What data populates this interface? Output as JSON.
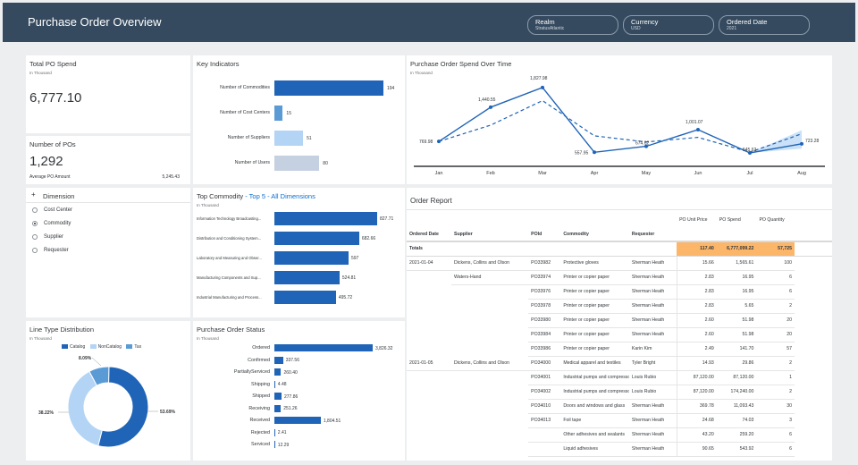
{
  "header": {
    "title": "Purchase Order Overview",
    "filters": [
      {
        "label": "Realm",
        "value": "StratusAtlantic"
      },
      {
        "label": "Currency",
        "value": "USD"
      },
      {
        "label": "Ordered Date",
        "value": "2021"
      }
    ]
  },
  "total_po": {
    "title": "Total PO Spend",
    "unit": "In Thousand",
    "value": "6,777.10"
  },
  "num_pos": {
    "title": "Number of POs",
    "value": "1,292",
    "avg_label": "Average PO Amount",
    "avg_value": "5,245.43"
  },
  "dimension": {
    "title": "Dimension",
    "options": [
      "Cost Center",
      "Commodity",
      "Supplier",
      "Requester"
    ],
    "selected": "Commodity"
  },
  "key_indicators": {
    "title": "Key Indicators"
  },
  "top_commodity": {
    "title": "Top Commodity",
    "link": "- Top 5 - All Dimensions",
    "unit": "In Thousand"
  },
  "spend_over_time": {
    "title": "Purchase Order Spend Over Time",
    "unit": "In Thousand"
  },
  "line_type": {
    "title": "Line Type Distribution",
    "unit": "In Thousand"
  },
  "po_status": {
    "title": "Purchase Order Status",
    "unit": "In Thousand"
  },
  "order_report": {
    "title": "Order Report",
    "header_top": [
      "PO Unit Price",
      "PO Spend",
      "PO Quantity"
    ],
    "columns": [
      "Ordered Date",
      "Supplier",
      "POId",
      "Commodity",
      "Requester"
    ],
    "totals": {
      "label": "Totals",
      "unit_price": "117.40",
      "spend": "6,777,099.22",
      "qty": "57,725"
    },
    "rows": [
      [
        "2021-01-04",
        "Dickens, Collins and Olson",
        "PO33982",
        "Protective gloves",
        "Sherman Heath",
        "15.66",
        "1,565.61",
        "100"
      ],
      [
        "",
        "Waters-Hand",
        "PO33974",
        "Printer or copier paper",
        "Sherman Heath",
        "2.83",
        "16.95",
        "6"
      ],
      [
        "",
        "",
        "PO33976",
        "Printer or copier paper",
        "Sherman Heath",
        "2.83",
        "16.95",
        "6"
      ],
      [
        "",
        "",
        "PO33978",
        "Printer or copier paper",
        "Sherman Heath",
        "2.83",
        "5.65",
        "2"
      ],
      [
        "",
        "",
        "PO33980",
        "Printer or copier paper",
        "Sherman Heath",
        "2.60",
        "51.98",
        "20"
      ],
      [
        "",
        "",
        "PO33984",
        "Printer or copier paper",
        "Sherman Heath",
        "2.60",
        "51.98",
        "20"
      ],
      [
        "",
        "",
        "PO33986",
        "Printer or copier paper",
        "Karin Kim",
        "2.49",
        "141.70",
        "57"
      ],
      [
        "2021-01-05",
        "Dickens, Collins and Olson",
        "PO34000",
        "Medical apparel and textiles",
        "Tyler Bright",
        "14.93",
        "29.86",
        "2"
      ],
      [
        "",
        "",
        "PO34001",
        "Industrial pumps and compressors",
        "Louis Rubio",
        "87,120.00",
        "87,120.00",
        "1"
      ],
      [
        "",
        "",
        "PO34002",
        "Industrial pumps and compressors",
        "Louis Rubio",
        "87,120.00",
        "174,240.00",
        "2"
      ],
      [
        "",
        "",
        "PO34010",
        "Doors and windows and glass",
        "Sherman Heath",
        "369.78",
        "11,093.43",
        "30"
      ],
      [
        "",
        "",
        "PO34013",
        "Foil tape",
        "Sherman Heath",
        "24.68",
        "74.03",
        "3"
      ],
      [
        "",
        "",
        "",
        "Other adhesives and sealants",
        "Sherman Heath",
        "43.20",
        "259.20",
        "6"
      ],
      [
        "",
        "",
        "",
        "Liquid adhesives",
        "Sherman Heath",
        "90.65",
        "543.92",
        "6"
      ]
    ]
  },
  "colors": {
    "header": "#354a5f",
    "primary": "#1f64b7",
    "light": "#5b9bd5",
    "lighter": "#b3d4f5",
    "gray": "#c5d0e0",
    "highlight": "#fbb66a"
  },
  "chart_data": [
    {
      "type": "bar",
      "title": "Key Indicators",
      "categories": [
        "Number of Commodities",
        "Number of Cost Centers",
        "Number of Suppliers",
        "Number of Users"
      ],
      "values": [
        194,
        15,
        51,
        80
      ],
      "colors": [
        "#1f64b7",
        "#5b9bd5",
        "#b3d4f5",
        "#c5d0e0"
      ]
    },
    {
      "type": "bar",
      "title": "Top Commodity",
      "categories": [
        "Information Technology Broadcasting...",
        "Distribution and Conditioning System...",
        "Laboratory and Measuring and Obser...",
        "Manufacturing Components and Sup...",
        "Industrial Manufacturing and Process..."
      ],
      "values": [
        827.71,
        682.66,
        597.0,
        524.81,
        495.72
      ]
    },
    {
      "type": "line",
      "title": "Purchase Order Spend Over Time",
      "categories": [
        "Jan",
        "Feb",
        "Mar",
        "Apr",
        "May",
        "Jun",
        "Jul",
        "Aug"
      ],
      "series": [
        {
          "values": [
            769.98,
            1440.55,
            1827.98,
            557.95,
            674.62,
            1001.07,
            545.62,
            723.28
          ],
          "labels": [
            "769.98",
            "1,440.55",
            "1,827.98",
            "557.95",
            "674.62",
            "1,001.07",
            "545.62",
            "723.28"
          ]
        },
        {
          "values": [
            769.98,
            1090,
            1570,
            880,
            760,
            850,
            560,
            920
          ]
        }
      ],
      "ylim": [
        300,
        2000
      ]
    },
    {
      "type": "pie",
      "title": "Line Type Distribution",
      "categories": [
        "Catalog",
        "NonCatalog",
        "Tax"
      ],
      "values": [
        53.69,
        38.22,
        8.09
      ],
      "labels": [
        "53.69%",
        "38.22%",
        "8.09%"
      ],
      "colors": [
        "#1f64b7",
        "#b3d4f5",
        "#5b9bd5"
      ]
    },
    {
      "type": "bar",
      "title": "Purchase Order Status",
      "categories": [
        "Ordered",
        "Confirmed",
        "PartiallyServiced",
        "Shipping",
        "Shipped",
        "Receiving",
        "Received",
        "Rejected",
        "Serviced"
      ],
      "values": [
        3826.32,
        337.56,
        260.4,
        4.48,
        277.86,
        251.26,
        1804.51,
        2.41,
        12.29
      ],
      "labels": [
        "3,826.32",
        "337.56",
        "260.40",
        "4.48",
        "277.86",
        "251.26",
        "1,804.51",
        "2.41",
        "12.29"
      ]
    }
  ]
}
